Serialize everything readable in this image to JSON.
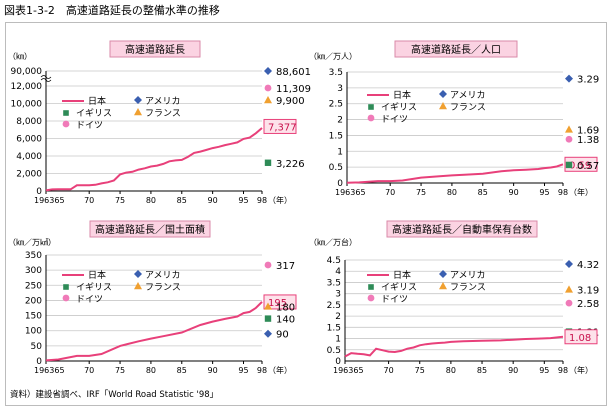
{
  "figure_title": "図表1-3-2　高速道路延長の整備水準の推移",
  "source": "資料）建設省調べ、IRF「World Road Statistic '98」",
  "colors": {
    "japan": "#e8407a",
    "usa": "#3a5fb0",
    "uk": "#2e8b57",
    "france": "#f0a030",
    "germany": "#f07ab8",
    "grid": "#c8c8c8",
    "title_bg": "#fbd3e2",
    "title_border": "#d98aa8"
  },
  "chart_data": [
    {
      "type": "line",
      "title": "高速道路延長",
      "unit_label": "（㎞）",
      "x_ticks": [
        "196365",
        "70",
        "75",
        "80",
        "85",
        "90",
        "95",
        "98"
      ],
      "year_label": "（年）",
      "y_ticks": [
        "0",
        "2,000",
        "4,000",
        "6,000",
        "8,000",
        "10,000",
        "12,000",
        "90,000"
      ],
      "ylim": [
        0,
        12000
      ],
      "axis_break": true,
      "series": [
        {
          "name": "日本",
          "x": [
            1963,
            1964,
            1965,
            1966,
            1967,
            1968,
            1969,
            1970,
            1971,
            1972,
            1973,
            1974,
            1975,
            1976,
            1977,
            1978,
            1979,
            1980,
            1981,
            1982,
            1983,
            1984,
            1985,
            1986,
            1987,
            1988,
            1989,
            1990,
            1991,
            1992,
            1993,
            1994,
            1995,
            1996,
            1997,
            1998
          ],
          "y": [
            71,
            181,
            190,
            190,
            190,
            650,
            650,
            650,
            710,
            865,
            1000,
            1200,
            1900,
            2100,
            2200,
            2450,
            2600,
            2800,
            2900,
            3100,
            3400,
            3500,
            3550,
            3900,
            4350,
            4500,
            4700,
            4900,
            5050,
            5250,
            5400,
            5550,
            5950,
            6100,
            6600,
            7200
          ]
        }
      ],
      "legend": [
        "日本",
        "アメリカ",
        "イギリス",
        "フランス",
        "ドイツ"
      ],
      "points_1998": [
        {
          "country": "アメリカ",
          "label": "88,601",
          "value": 88601
        },
        {
          "country": "ドイツ",
          "label": "11,309",
          "value": 11309
        },
        {
          "country": "フランス",
          "label": "9,900",
          "value": 9900
        },
        {
          "country": "日本",
          "label": "7,377",
          "value": 7377
        },
        {
          "country": "イギリス",
          "label": "3,226",
          "value": 3226
        }
      ]
    },
    {
      "type": "line",
      "title": "高速道路延長／人口",
      "unit_label": "（㎞／万人）",
      "x_ticks": [
        "196365",
        "70",
        "75",
        "80",
        "85",
        "90",
        "95",
        "98"
      ],
      "year_label": "（年）",
      "y_ticks": [
        "0",
        "0.5",
        "1",
        "1.5",
        "2",
        "2.5",
        "3",
        "3.5"
      ],
      "ylim": [
        0,
        3.5
      ],
      "series": [
        {
          "name": "日本",
          "x": [
            1963,
            1965,
            1968,
            1970,
            1972,
            1975,
            1978,
            1980,
            1982,
            1985,
            1988,
            1990,
            1992,
            1994,
            1995,
            1996,
            1997,
            1998
          ],
          "y": [
            0.01,
            0.02,
            0.06,
            0.06,
            0.08,
            0.17,
            0.21,
            0.24,
            0.26,
            0.29,
            0.37,
            0.4,
            0.42,
            0.44,
            0.47,
            0.49,
            0.52,
            0.59
          ]
        }
      ],
      "legend": [
        "日本",
        "アメリカ",
        "イギリス",
        "フランス",
        "ドイツ"
      ],
      "points_1998": [
        {
          "country": "アメリカ",
          "label": "3.29",
          "value": 3.29
        },
        {
          "country": "フランス",
          "label": "1.69",
          "value": 1.69
        },
        {
          "country": "ドイツ",
          "label": "1.38",
          "value": 1.38
        },
        {
          "country": "日本",
          "label": "0.59",
          "value": 0.59
        },
        {
          "country": "イギリス",
          "label": "0.57",
          "value": 0.57
        }
      ]
    },
    {
      "type": "line",
      "title": "高速道路延長／国土面積",
      "unit_label": "（㎞／万㎢）",
      "x_ticks": [
        "196365",
        "70",
        "75",
        "80",
        "85",
        "90",
        "95",
        "98"
      ],
      "year_label": "（年）",
      "y_ticks": [
        "0",
        "50",
        "100",
        "150",
        "200",
        "250",
        "300",
        "350"
      ],
      "ylim": [
        0,
        350
      ],
      "series": [
        {
          "name": "日本",
          "x": [
            1963,
            1965,
            1968,
            1970,
            1972,
            1975,
            1978,
            1980,
            1982,
            1985,
            1988,
            1990,
            1992,
            1994,
            1995,
            1996,
            1997,
            1998
          ],
          "y": [
            2,
            5,
            17,
            17,
            23,
            50,
            65,
            74,
            82,
            94,
            119,
            130,
            139,
            147,
            158,
            162,
            175,
            195
          ]
        }
      ],
      "legend": [
        "日本",
        "アメリカ",
        "イギリス",
        "フランス",
        "ドイツ"
      ],
      "points_1998": [
        {
          "country": "ドイツ",
          "label": "317",
          "value": 317
        },
        {
          "country": "日本",
          "label": "195",
          "value": 195
        },
        {
          "country": "フランス",
          "label": "180",
          "value": 180
        },
        {
          "country": "イギリス",
          "label": "140",
          "value": 140
        },
        {
          "country": "アメリカ",
          "label": "90",
          "value": 90
        }
      ]
    },
    {
      "type": "line",
      "title": "高速道路延長／自動車保有台数",
      "unit_label": "（㎞／万台）",
      "x_ticks": [
        "196365",
        "70",
        "75",
        "80",
        "85",
        "90",
        "95",
        "98"
      ],
      "year_label": "（年）",
      "y_ticks": [
        "0",
        "0.5",
        "1",
        "1.5",
        "2",
        "2.5",
        "3",
        "3.5",
        "4",
        "4.5"
      ],
      "ylim": [
        0,
        4.5
      ],
      "series": [
        {
          "name": "日本",
          "x": [
            1963,
            1964,
            1965,
            1966,
            1967,
            1968,
            1969,
            1970,
            1971,
            1972,
            1973,
            1974,
            1975,
            1976,
            1977,
            1978,
            1979,
            1980,
            1982,
            1985,
            1988,
            1990,
            1992,
            1994,
            1996,
            1998
          ],
          "y": [
            0.2,
            0.35,
            0.32,
            0.3,
            0.25,
            0.55,
            0.48,
            0.42,
            0.4,
            0.45,
            0.55,
            0.6,
            0.7,
            0.75,
            0.78,
            0.8,
            0.82,
            0.85,
            0.88,
            0.9,
            0.92,
            0.95,
            0.98,
            1.0,
            1.02,
            1.08
          ]
        }
      ],
      "legend": [
        "日本",
        "アメリカ",
        "イギリス",
        "フランス",
        "ドイツ"
      ],
      "points_1998": [
        {
          "country": "アメリカ",
          "label": "4.32",
          "value": 4.32
        },
        {
          "country": "フランス",
          "label": "3.19",
          "value": 3.19
        },
        {
          "country": "ドイツ",
          "label": "2.58",
          "value": 2.58
        },
        {
          "country": "イギリス",
          "label": "1.31",
          "value": 1.31
        },
        {
          "country": "日本",
          "label": "1.08",
          "value": 1.08
        }
      ]
    }
  ]
}
